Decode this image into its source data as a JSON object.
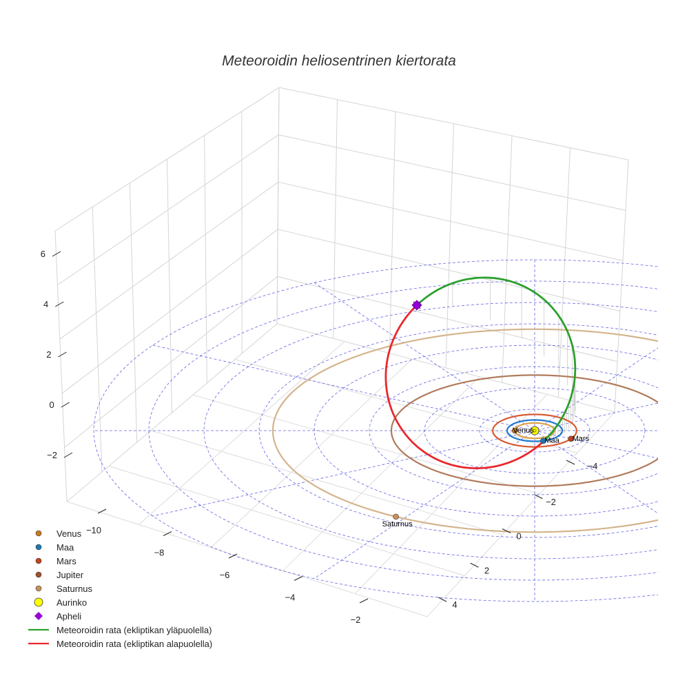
{
  "chart_data": {
    "type": "3d-orbit",
    "title": "Meteoroidin heliosentrinen kiertorata",
    "axes": {
      "x_ticks": [
        -10,
        -8,
        -6,
        -4,
        -2
      ],
      "y_ticks": [
        -4,
        -2,
        0,
        2,
        4
      ],
      "z_ticks": [
        -2,
        0,
        2,
        4,
        6
      ],
      "grid": true
    },
    "sun": {
      "name": "Aurinko",
      "color": "#ffff00"
    },
    "planets": [
      {
        "name": "Venus",
        "a": 0.72,
        "angle_deg": 180,
        "color": "#c77a1f",
        "orbit_color": "#d8a24a",
        "labeled": true
      },
      {
        "name": "Maa",
        "a": 1.0,
        "angle_deg": 288,
        "color": "#1f77b4",
        "orbit_color": "#1f77d0",
        "labeled": true
      },
      {
        "name": "Mars",
        "a": 1.52,
        "angle_deg": 330,
        "color": "#c0441c",
        "orbit_color": "#d85a30",
        "labeled": true
      },
      {
        "name": "Jupiter",
        "a": 5.2,
        "angle_deg": 0,
        "color": "#a0522d",
        "orbit_color": "#b07a5a",
        "labeled": false
      },
      {
        "name": "Saturnus",
        "a": 9.5,
        "angle_deg": 238,
        "color": "#c8915a",
        "orbit_color": "#d4b48c",
        "labeled": true
      }
    ],
    "meteoroid_orbit": {
      "q": 1.0,
      "Q": 12.5,
      "inclination_deg": 40,
      "perihelion_longitude_deg": 290,
      "above_color": "#2ca02c",
      "below_color": "#e8282c"
    },
    "aphelion": {
      "name": "Apheli",
      "color": "#9400d3"
    },
    "legend": {
      "placement": "bottom-left",
      "entries": [
        {
          "label": "Venus",
          "kind": "dot",
          "color": "#c77a1f"
        },
        {
          "label": "Maa",
          "kind": "dot",
          "color": "#1f77b4"
        },
        {
          "label": "Mars",
          "kind": "dot",
          "color": "#c0441c"
        },
        {
          "label": "Jupiter",
          "kind": "dot",
          "color": "#a0522d"
        },
        {
          "label": "Saturnus",
          "kind": "dot",
          "color": "#c8915a"
        },
        {
          "label": "Aurinko",
          "kind": "bigdot",
          "color": "#ffff00"
        },
        {
          "label": "Apheli",
          "kind": "diamond",
          "color": "#9400d3"
        },
        {
          "label": "Meteoroidin rata (ekliptikan yläpuolella)",
          "kind": "line",
          "color": "#2ca02c"
        },
        {
          "label": "Meteoroidin rata (ekliptikan alapuolella)",
          "kind": "line",
          "color": "#e8282c"
        }
      ]
    }
  }
}
